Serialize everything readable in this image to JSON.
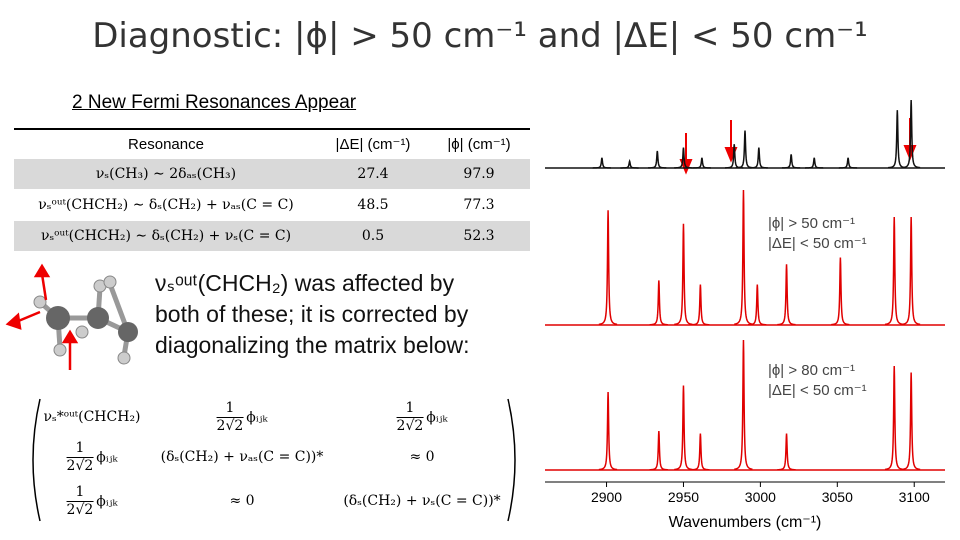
{
  "title": "Diagnostic: |ϕ| > 50 cm⁻¹ and |ΔE| < 50 cm⁻¹",
  "subtitle": "2 New Fermi Resonances Appear",
  "table": {
    "header": [
      "Resonance",
      "|ΔE| (cm⁻¹)",
      "|ϕ| (cm⁻¹)"
    ],
    "rows": [
      [
        "νₛ(CH₃) ∼ 2δₐₛ(CH₃)",
        27.4,
        97.9
      ],
      [
        "νₛᵒᵘᵗ(CHCH₂) ∼ δₛ(CH₂) + νₐₛ(C = C)",
        48.5,
        77.3
      ],
      [
        "νₛᵒᵘᵗ(CHCH₂) ∼ δₛ(CH₂) + νₛ(C = C)",
        0.5,
        52.3
      ]
    ]
  },
  "body": {
    "formula": "νₛᵒᵘᵗ(CHCH₂)",
    "lines": [
      "was affected by",
      "both of these; it is corrected by",
      "diagonalizing the matrix below:"
    ]
  },
  "matrix": {
    "rows": [
      [
        "νₛ*ᵒᵘᵗ(CHCH₂)",
        {
          "numerator": "1",
          "denominator": "2√2",
          "symbol": "ϕᵢⱼₖ"
        },
        {
          "numerator": "1",
          "denominator": "2√2",
          "symbol": "ϕᵢⱼₖ"
        }
      ],
      [
        {
          "numerator": "1",
          "denominator": "2√2",
          "symbol": "ϕᵢⱼₖ"
        },
        "(δₛ(CH₂) + νₐₛ(C = C))*",
        "≈ 0"
      ],
      [
        {
          "numerator": "1",
          "denominator": "2√2",
          "symbol": "ϕᵢⱼₖ"
        },
        "≈ 0",
        "(δₛ(CH₂) + νₛ(C = C))*"
      ]
    ]
  },
  "chart_data": {
    "type": "stick-spectrum",
    "x_label": "Wavenumbers (cm⁻¹)",
    "xlim": [
      2860,
      3120
    ],
    "xticks": [
      2900,
      2950,
      3000,
      3050,
      3100
    ],
    "series": [
      {
        "color": "#111111",
        "labels": [],
        "x": [
          2897,
          2915,
          2933,
          2950,
          2962,
          2983,
          2990,
          2999,
          3020,
          3035,
          3057,
          3089,
          3098
        ],
        "values": [
          0.15,
          0.1,
          0.25,
          0.3,
          0.15,
          0.35,
          0.55,
          0.3,
          0.2,
          0.15,
          0.15,
          0.85,
          1.0
        ]
      },
      {
        "color": "#e00000",
        "labels": [
          "|ϕ| > 50 cm⁻¹",
          "|ΔE| < 50 cm⁻¹"
        ],
        "x": [
          2901,
          2934,
          2950,
          2961,
          2989,
          2998,
          3017,
          3052,
          3087,
          3098
        ],
        "values": [
          0.85,
          0.33,
          0.75,
          0.3,
          1.0,
          0.3,
          0.45,
          0.5,
          0.8,
          0.8
        ]
      },
      {
        "color": "#e00000",
        "labels": [
          "|ϕ| > 80 cm⁻¹",
          "|ΔE| < 50 cm⁻¹"
        ],
        "x": [
          2901,
          2934,
          2950,
          2961,
          2989,
          3017,
          3087,
          3098
        ],
        "values": [
          0.6,
          0.3,
          0.65,
          0.28,
          1.0,
          0.28,
          0.8,
          0.75
        ]
      }
    ]
  }
}
